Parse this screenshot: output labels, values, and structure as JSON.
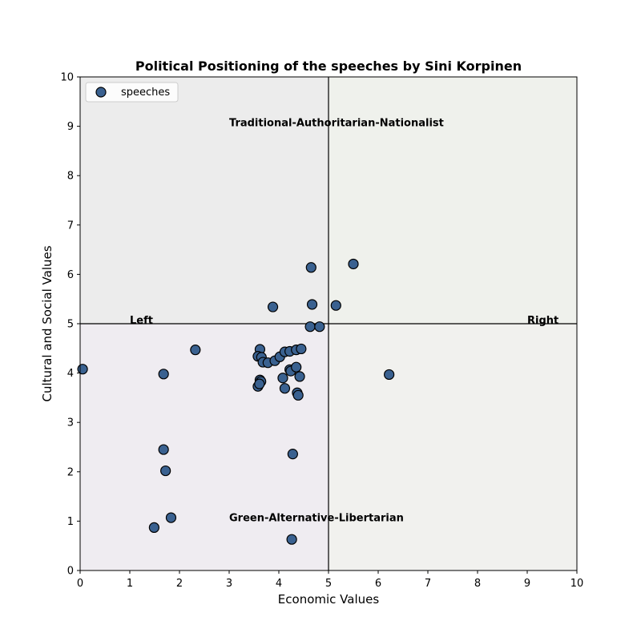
{
  "chart_data": {
    "type": "scatter",
    "title": "Political Positioning of the speeches by Sini Korpinen",
    "xlabel": "Economic Values",
    "ylabel": "Cultural and Social Values",
    "xlim": [
      0,
      10
    ],
    "ylim": [
      0,
      10
    ],
    "x_ticks": [
      0,
      1,
      2,
      3,
      4,
      5,
      6,
      7,
      8,
      9,
      10
    ],
    "y_ticks": [
      0,
      1,
      2,
      3,
      4,
      5,
      6,
      7,
      8,
      9,
      10
    ],
    "grid": false,
    "legend_position": "top-left",
    "center_lines": {
      "x": 5,
      "y": 5
    },
    "quadrant_colors": {
      "upper_left": "#ececec",
      "upper_right": "#eff1ec",
      "lower_left": "#efecf1",
      "lower_right": "#f1f1ee"
    },
    "annotations": [
      {
        "text": "Traditional-Authoritarian-Nationalist",
        "x": 3.0,
        "y": 9.0
      },
      {
        "text": "Green-Alternative-Libertarian",
        "x": 3.0,
        "y": 1.0
      },
      {
        "text": "Left",
        "x": 1.0,
        "y": 5.0
      },
      {
        "text": "Right",
        "x": 9.0,
        "y": 5.0
      }
    ],
    "series": [
      {
        "name": "speeches",
        "color": "#3a6190",
        "edge_color": "#000000",
        "points": [
          {
            "x": 0.05,
            "y": 4.08
          },
          {
            "x": 1.68,
            "y": 3.98
          },
          {
            "x": 2.32,
            "y": 4.47
          },
          {
            "x": 1.68,
            "y": 2.45
          },
          {
            "x": 1.72,
            "y": 2.02
          },
          {
            "x": 1.49,
            "y": 0.87
          },
          {
            "x": 1.83,
            "y": 1.07
          },
          {
            "x": 3.88,
            "y": 5.34
          },
          {
            "x": 4.65,
            "y": 6.14
          },
          {
            "x": 5.5,
            "y": 6.21
          },
          {
            "x": 4.67,
            "y": 5.39
          },
          {
            "x": 5.15,
            "y": 5.37
          },
          {
            "x": 4.63,
            "y": 4.94
          },
          {
            "x": 4.82,
            "y": 4.94
          },
          {
            "x": 6.22,
            "y": 3.97
          },
          {
            "x": 3.62,
            "y": 4.48
          },
          {
            "x": 3.58,
            "y": 4.34
          },
          {
            "x": 3.65,
            "y": 4.32
          },
          {
            "x": 3.68,
            "y": 4.22
          },
          {
            "x": 3.78,
            "y": 4.21
          },
          {
            "x": 3.92,
            "y": 4.25
          },
          {
            "x": 4.02,
            "y": 4.33
          },
          {
            "x": 4.12,
            "y": 4.43
          },
          {
            "x": 4.22,
            "y": 4.44
          },
          {
            "x": 4.35,
            "y": 4.47
          },
          {
            "x": 4.45,
            "y": 4.49
          },
          {
            "x": 4.22,
            "y": 4.07
          },
          {
            "x": 4.24,
            "y": 4.04
          },
          {
            "x": 4.35,
            "y": 4.12
          },
          {
            "x": 4.42,
            "y": 3.93
          },
          {
            "x": 4.08,
            "y": 3.9
          },
          {
            "x": 3.62,
            "y": 3.86
          },
          {
            "x": 3.64,
            "y": 3.83
          },
          {
            "x": 3.58,
            "y": 3.73
          },
          {
            "x": 3.61,
            "y": 3.78
          },
          {
            "x": 4.12,
            "y": 3.69
          },
          {
            "x": 4.37,
            "y": 3.6
          },
          {
            "x": 4.39,
            "y": 3.55
          },
          {
            "x": 4.28,
            "y": 2.36
          },
          {
            "x": 4.26,
            "y": 0.63
          }
        ]
      }
    ]
  }
}
